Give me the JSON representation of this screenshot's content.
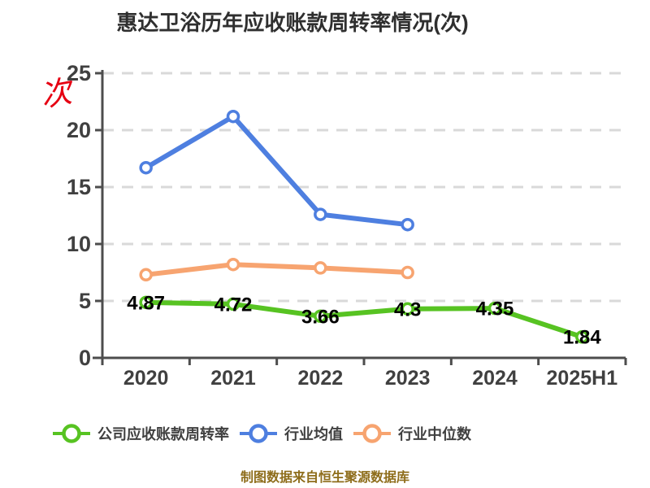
{
  "title": "惠达卫浴历年应收账款周转率情况(次)",
  "unit_label": "次",
  "caption": "制图数据来自恒生聚源数据库",
  "colors": {
    "title_text": "#2f2f2f",
    "axis": "#4d4d4d",
    "tick_text": "#404040",
    "gridline": "#d9d9d9",
    "data_label_text": "#000000",
    "legend_text": "#404040",
    "caption_text": "#8e6d1b",
    "unit_text": "#e60012",
    "company_green": "#57c322",
    "industry_avg_blue": "#4e7fe0",
    "industry_median_orange": "#f7a470"
  },
  "chart_data": {
    "type": "line",
    "title": "惠达卫浴历年应收账款周转率情况(次)",
    "categories": [
      "2020",
      "2021",
      "2022",
      "2023",
      "2024",
      "2025H1"
    ],
    "series": [
      {
        "key": "company-receivables-turnover",
        "name": "公司应收账款周转率",
        "color": "#57c322",
        "values": [
          4.87,
          4.72,
          3.66,
          4.3,
          4.35,
          1.84
        ],
        "data_labels": [
          "4.87",
          "4.72",
          "3.66",
          "4.3",
          "4.35",
          "1.84"
        ]
      },
      {
        "key": "industry-average",
        "name": "行业均值",
        "color": "#4e7fe0",
        "values": [
          16.7,
          21.2,
          12.6,
          11.7
        ],
        "data_labels": []
      },
      {
        "key": "industry-median",
        "name": "行业中位数",
        "color": "#f7a470",
        "values": [
          7.3,
          8.2,
          7.9,
          7.5
        ],
        "data_labels": []
      }
    ],
    "xlabel": "",
    "ylabel": "次",
    "ylim": [
      0,
      25
    ],
    "yticks": [
      0,
      5,
      10,
      15,
      20,
      25
    ],
    "grid": "horizontal-dashed",
    "legend_position": "bottom"
  }
}
